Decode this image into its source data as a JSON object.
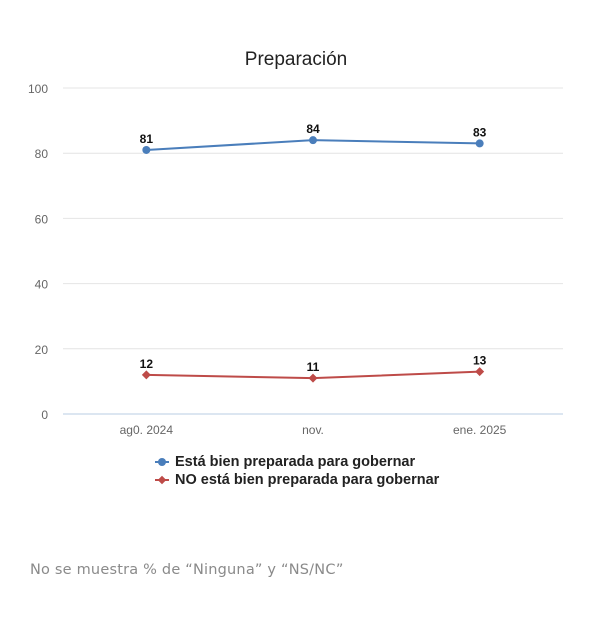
{
  "chart_data": {
    "type": "line",
    "title": "Preparación",
    "categories": [
      "ag0. 2024",
      "nov.",
      "ene. 2025"
    ],
    "ylim": [
      0,
      100
    ],
    "yticks": [
      0,
      20,
      40,
      60,
      80,
      100
    ],
    "grid": true,
    "legend_position": "bottom",
    "series": [
      {
        "name": "Está bien preparada para gobernar",
        "values": [
          81,
          84,
          83
        ],
        "color": "#4a7ebb",
        "marker": "circle"
      },
      {
        "name": "NO está bien preparada para gobernar",
        "values": [
          12,
          11,
          13
        ],
        "color": "#be4b48",
        "marker": "diamond"
      }
    ]
  },
  "footnote": "No se muestra % de “Ninguna” y “NS/NC”"
}
